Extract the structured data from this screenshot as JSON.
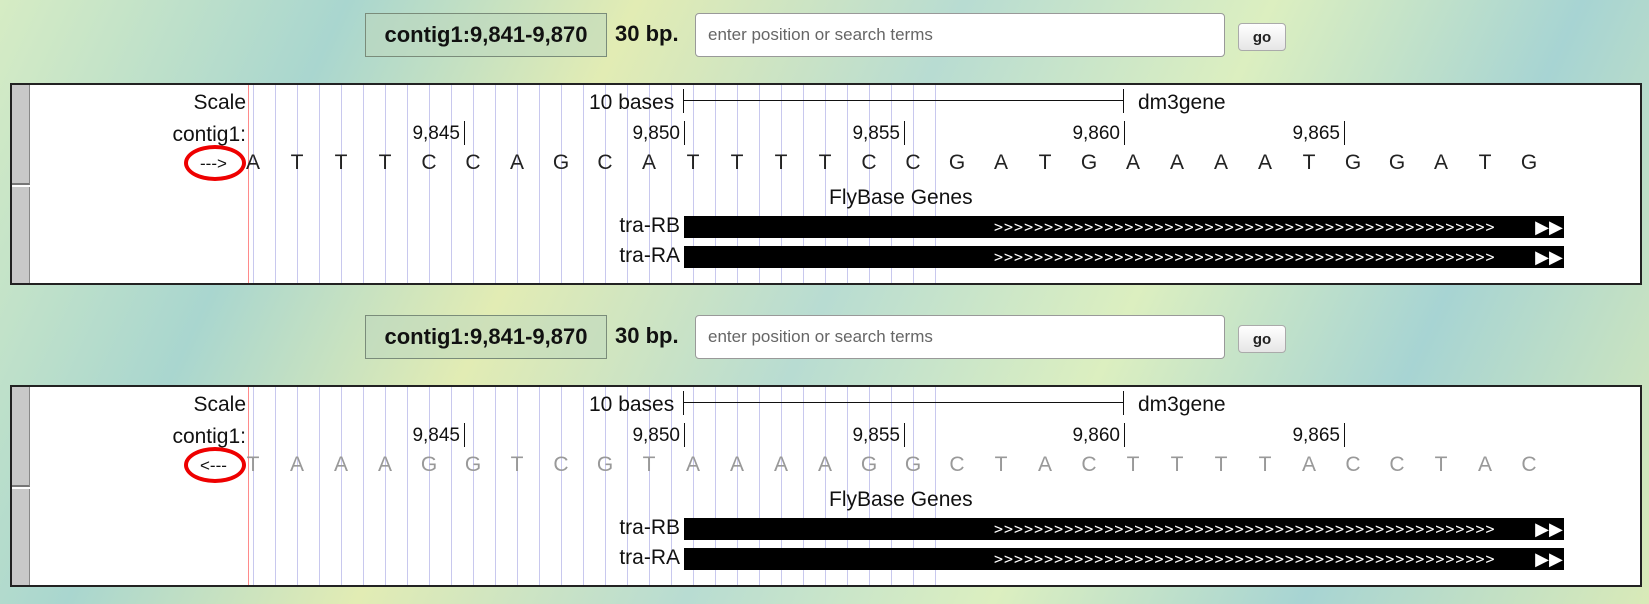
{
  "panels": [
    {
      "position_text": "contig1:9,841-9,870",
      "bp_text": "30 bp.",
      "search_placeholder": "enter position or search terms",
      "go_label": "go",
      "scale_label": "Scale",
      "contig_label": "contig1:",
      "scalebar_text": "10 bases",
      "assembly_label": "dm3gene",
      "ticks": [
        "9,845",
        "9,850",
        "9,855",
        "9,860",
        "9,865"
      ],
      "strand_arrow": "--->",
      "sequence": [
        "A",
        "T",
        "T",
        "T",
        "C",
        "C",
        "A",
        "G",
        "C",
        "A",
        "T",
        "T",
        "T",
        "T",
        "C",
        "C",
        "G",
        "A",
        "T",
        "G",
        "A",
        "A",
        "A",
        "A",
        "T",
        "G",
        "G",
        "A",
        "T",
        "G"
      ],
      "track_title": "FlyBase Genes",
      "genes": [
        "tra-RB",
        "tra-RA"
      ]
    },
    {
      "position_text": "contig1:9,841-9,870",
      "bp_text": "30 bp.",
      "search_placeholder": "enter position or search terms",
      "go_label": "go",
      "scale_label": "Scale",
      "contig_label": "contig1:",
      "scalebar_text": "10 bases",
      "assembly_label": "dm3gene",
      "ticks": [
        "9,845",
        "9,850",
        "9,855",
        "9,860",
        "9,865"
      ],
      "strand_arrow": "<---",
      "sequence": [
        "T",
        "A",
        "A",
        "A",
        "G",
        "G",
        "T",
        "C",
        "G",
        "T",
        "A",
        "A",
        "A",
        "A",
        "G",
        "G",
        "C",
        "T",
        "A",
        "C",
        "T",
        "T",
        "T",
        "T",
        "A",
        "C",
        "C",
        "T",
        "A",
        "C"
      ],
      "track_title": "FlyBase Genes",
      "genes": [
        "tra-RB",
        "tra-RA"
      ]
    }
  ],
  "colors": {
    "highlight_circle": "#e00000",
    "gene_feature": "#000000",
    "grid_line": "#c8c8ee"
  },
  "icons": {
    "arrow_glyph": "chevron-right-icon",
    "gene_end": "double-chevron-right-icon"
  }
}
